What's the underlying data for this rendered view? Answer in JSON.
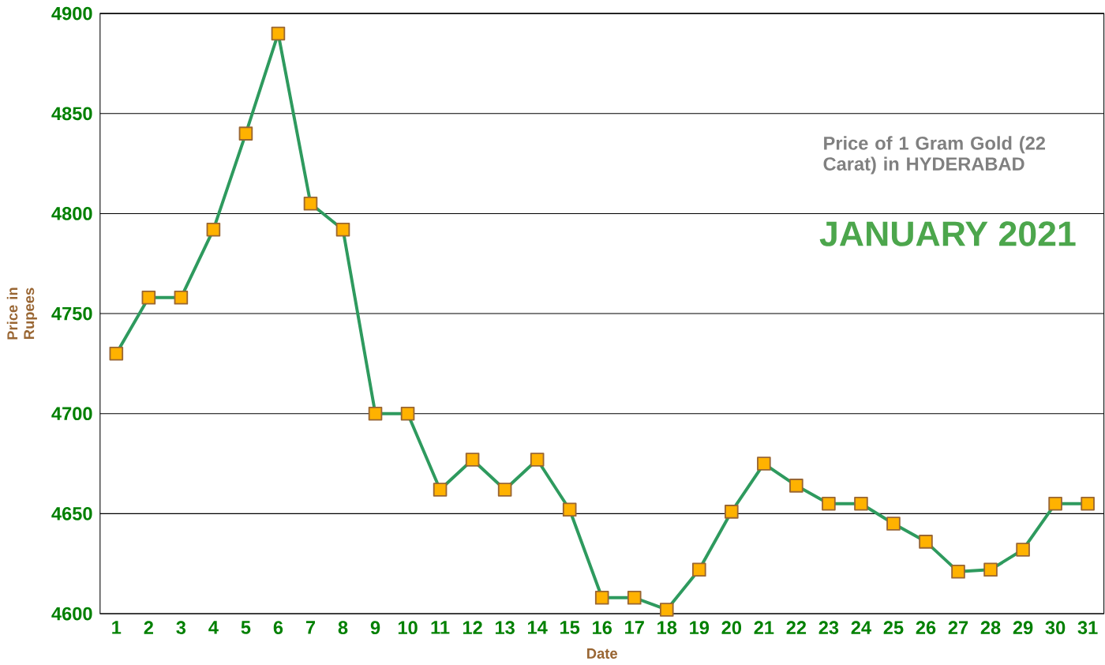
{
  "chart_data": {
    "type": "line",
    "xlabel": "Date",
    "ylabel": "Price in Rupees",
    "categories": [
      "1",
      "2",
      "3",
      "4",
      "5",
      "6",
      "7",
      "8",
      "9",
      "10",
      "11",
      "12",
      "13",
      "14",
      "15",
      "16",
      "17",
      "18",
      "19",
      "20",
      "21",
      "22",
      "23",
      "24",
      "25",
      "26",
      "27",
      "28",
      "29",
      "30",
      "31"
    ],
    "values": [
      4730,
      4758,
      4758,
      4792,
      4840,
      4890,
      4805,
      4792,
      4700,
      4700,
      4662,
      4677,
      4662,
      4677,
      4652,
      4608,
      4608,
      4602,
      4622,
      4651,
      4675,
      4664,
      4655,
      4655,
      4645,
      4636,
      4621,
      4622,
      4632,
      4655,
      4655
    ],
    "color": "#2e9a5e",
    "marker": "square",
    "line_style": "solid",
    "grid": "y",
    "ylim": [
      4600,
      4900
    ],
    "yticks": [
      4600,
      4650,
      4700,
      4750,
      4800,
      4850,
      4900
    ],
    "annotations": [
      "Price of 1 Gram Gold (22 Carat) in HYDERABAD",
      "JANUARY 2021"
    ]
  }
}
